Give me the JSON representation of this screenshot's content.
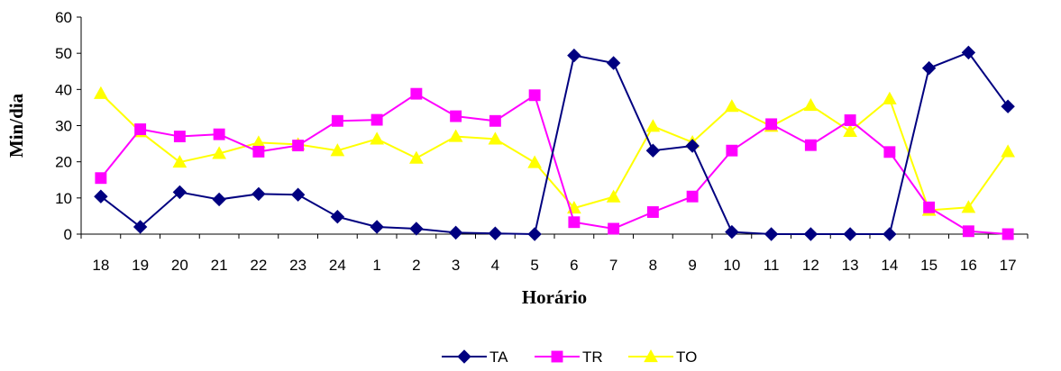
{
  "chart_data": {
    "type": "line",
    "title": "",
    "xlabel": "Horário",
    "ylabel": "Min/dia",
    "categories": [
      "18",
      "19",
      "20",
      "21",
      "22",
      "23",
      "24",
      "1",
      "2",
      "3",
      "4",
      "5",
      "6",
      "7",
      "8",
      "9",
      "10",
      "11",
      "12",
      "13",
      "14",
      "15",
      "16",
      "17"
    ],
    "ylim": [
      0,
      60
    ],
    "yticks": [
      0,
      10,
      20,
      30,
      40,
      50,
      60
    ],
    "grid": false,
    "legend_position": "bottom",
    "series": [
      {
        "name": "TA",
        "color": "#000080",
        "marker": "diamond",
        "values": [
          10.4,
          2,
          11.6,
          9.6,
          11.1,
          10.9,
          4.8,
          2,
          1.5,
          0.4,
          0.2,
          0,
          49.4,
          47.3,
          23.1,
          24.4,
          0.6,
          0,
          0,
          0,
          0,
          45.9,
          50.2,
          35.3
        ]
      },
      {
        "name": "TR",
        "color": "#FF00FF",
        "marker": "square",
        "values": [
          15.5,
          29,
          27,
          27.6,
          22.8,
          24.5,
          31.3,
          31.6,
          38.8,
          32.6,
          31.3,
          38.4,
          3.3,
          1.5,
          6.1,
          10.4,
          23.1,
          30.4,
          24.6,
          31.5,
          22.7,
          7.4,
          0.8,
          0
        ]
      },
      {
        "name": "TO",
        "color": "#FFFF00",
        "marker": "triangle",
        "values": [
          38.9,
          28.3,
          19.9,
          22.3,
          25.3,
          24.8,
          23.1,
          26.3,
          21,
          27,
          26.3,
          19.8,
          7.2,
          10.3,
          29.8,
          25.4,
          35.3,
          29.8,
          35.6,
          28.4,
          37.4,
          6.6,
          7.4,
          22.8
        ]
      }
    ]
  }
}
